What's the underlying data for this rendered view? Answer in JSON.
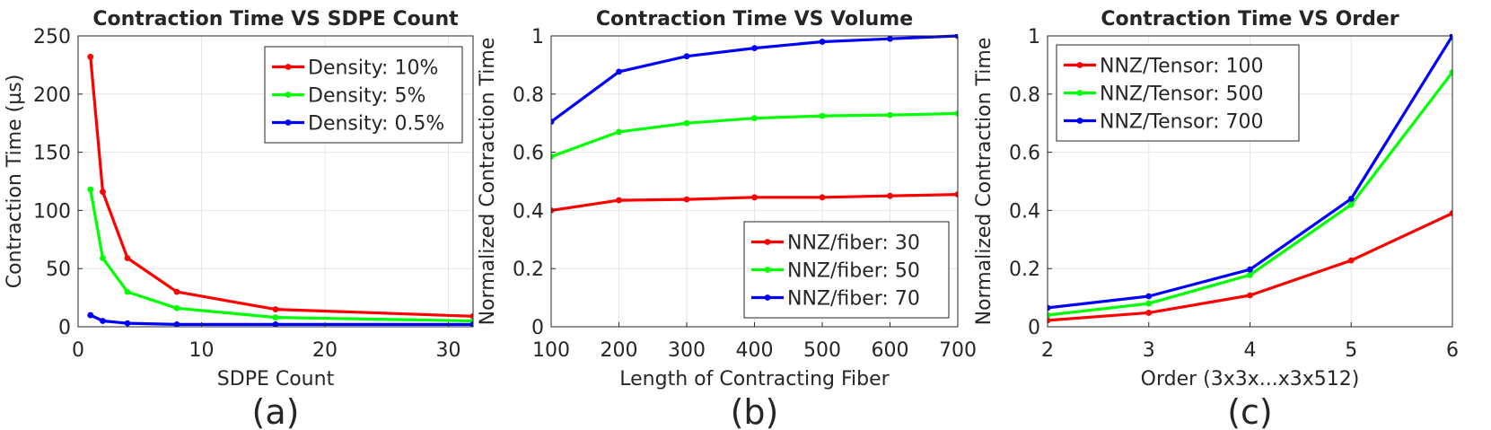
{
  "chart_data": [
    {
      "type": "line",
      "title": "Contraction Time VS SDPE Count",
      "xlabel": "SDPE Count",
      "ylabel": "Contraction Time (µs)",
      "caption": "(a)",
      "xlim": [
        0,
        32
      ],
      "ylim": [
        0,
        250
      ],
      "xticks": [
        0,
        10,
        20,
        30
      ],
      "yticks": [
        0,
        50,
        100,
        150,
        200,
        250
      ],
      "ytick_labels": [
        "0",
        "50",
        "100",
        "150",
        "200",
        "250"
      ],
      "legend_position": "top-right",
      "series": [
        {
          "name": "Density: 10%",
          "color": "#ff0000",
          "x": [
            1,
            2,
            4,
            8,
            16,
            32
          ],
          "y": [
            232,
            116,
            59,
            30,
            15,
            9
          ]
        },
        {
          "name": "Density: 5%",
          "color": "#00ff00",
          "x": [
            1,
            2,
            4,
            8,
            16,
            32
          ],
          "y": [
            118,
            59,
            30,
            16,
            8,
            5
          ]
        },
        {
          "name": "Density: 0.5%",
          "color": "#0000ff",
          "x": [
            1,
            2,
            4,
            8,
            16,
            32
          ],
          "y": [
            10,
            5,
            3,
            2,
            2,
            2
          ]
        }
      ]
    },
    {
      "type": "line",
      "title": "Contraction Time VS Volume",
      "xlabel": "Length of Contracting Fiber",
      "ylabel": "Normalized Contraction Time",
      "caption": "(b)",
      "xlim": [
        100,
        700
      ],
      "ylim": [
        0,
        1
      ],
      "xticks": [
        100,
        200,
        300,
        400,
        500,
        600,
        700
      ],
      "yticks": [
        0,
        0.2,
        0.4,
        0.6,
        0.8,
        1
      ],
      "ytick_labels": [
        "0",
        "0.2",
        "0.4",
        "0.6",
        "0.8",
        "1"
      ],
      "legend_position": "bottom-right",
      "series": [
        {
          "name": "NNZ/fiber: 30",
          "color": "#ff0000",
          "x": [
            100,
            200,
            300,
            400,
            500,
            600,
            700
          ],
          "y": [
            0.4,
            0.435,
            0.438,
            0.445,
            0.445,
            0.45,
            0.455
          ]
        },
        {
          "name": "NNZ/fiber: 50",
          "color": "#00ff00",
          "x": [
            100,
            200,
            300,
            400,
            500,
            600,
            700
          ],
          "y": [
            0.585,
            0.67,
            0.7,
            0.717,
            0.725,
            0.728,
            0.733
          ]
        },
        {
          "name": "NNZ/fiber: 70",
          "color": "#0000ff",
          "x": [
            100,
            200,
            300,
            400,
            500,
            600,
            700
          ],
          "y": [
            0.705,
            0.877,
            0.93,
            0.958,
            0.98,
            0.99,
            1.0
          ]
        }
      ]
    },
    {
      "type": "line",
      "title": "Contraction Time VS Order",
      "xlabel": "Order (3x3x...x3x512)",
      "ylabel": "Normalized Contraction Time",
      "caption": "(c)",
      "xlim": [
        2,
        6
      ],
      "ylim": [
        0,
        1
      ],
      "xticks": [
        2,
        3,
        4,
        5,
        6
      ],
      "yticks": [
        0,
        0.2,
        0.4,
        0.6,
        0.8,
        1
      ],
      "ytick_labels": [
        "0",
        "0.2",
        "0.4",
        "0.6",
        "0.8",
        "1"
      ],
      "legend_position": "top-left",
      "series": [
        {
          "name": "NNZ/Tensor: 100",
          "color": "#ff0000",
          "x": [
            2,
            3,
            4,
            5,
            6
          ],
          "y": [
            0.022,
            0.048,
            0.108,
            0.228,
            0.39
          ]
        },
        {
          "name": "NNZ/Tensor: 500",
          "color": "#00ff00",
          "x": [
            2,
            3,
            4,
            5,
            6
          ],
          "y": [
            0.04,
            0.08,
            0.178,
            0.42,
            0.875
          ]
        },
        {
          "name": "NNZ/Tensor: 700",
          "color": "#0000ff",
          "x": [
            2,
            3,
            4,
            5,
            6
          ],
          "y": [
            0.065,
            0.105,
            0.197,
            0.44,
            1.0
          ]
        }
      ]
    }
  ]
}
